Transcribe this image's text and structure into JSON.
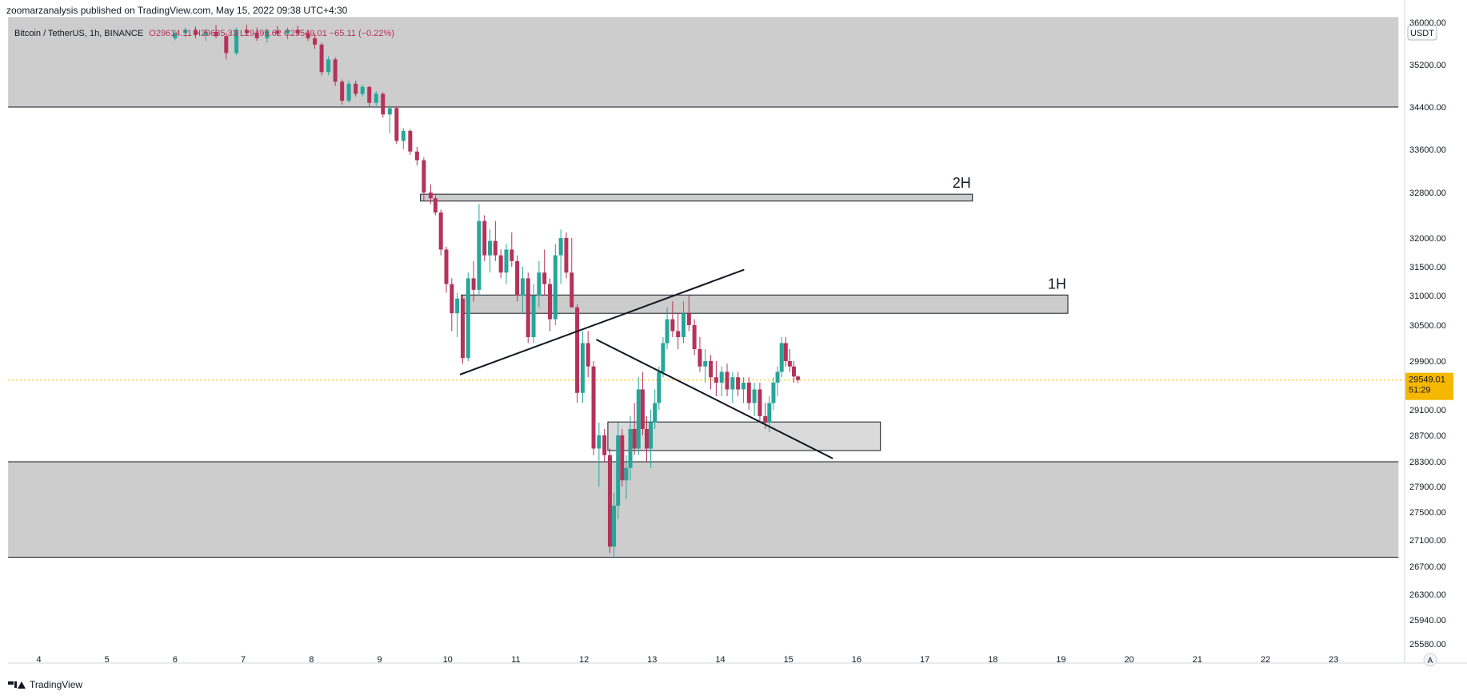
{
  "header": {
    "published": "zoomarzanalysis published on TradingView.com, May 15, 2022 09:38 UTC+4:30"
  },
  "legend": {
    "symbol": "Bitcoin / TetherUS, 1h, BINANCE",
    "ohlc": "O29614.11 H29635.33 L29495.62 C29549.01 −65.11 (−0.22%)"
  },
  "footer": {
    "brand": "TradingView",
    "logo_icon": "tradingview-logo-icon"
  },
  "colors": {
    "up": "#26a69a",
    "down": "#b5325a",
    "zone": "#cdcdcd",
    "zone_small": "#bbbbbb",
    "price_badge": "#f5b700"
  },
  "chart_data": {
    "type": "candlestick",
    "currency_label": "USDT",
    "current_price": {
      "price_text": "29549.01",
      "countdown": "51:29",
      "value": 29549.01
    },
    "x_ticks": [
      "4",
      "5",
      "6",
      "7",
      "8",
      "9",
      "10",
      "11",
      "12",
      "13",
      "14",
      "15",
      "16",
      "17",
      "18",
      "19",
      "20",
      "21",
      "22",
      "23"
    ],
    "y_ticks": [
      "36000.00",
      "35200.00",
      "34400.00",
      "33600.00",
      "32800.00",
      "32000.00",
      "31500.00",
      "31000.00",
      "30500.00",
      "29900.00",
      "29500.00",
      "29100.00",
      "28700.00",
      "28300.00",
      "27900.00",
      "27500.00",
      "27100.00",
      "26700.00",
      "26300.00",
      "25940.00",
      "25580.00"
    ],
    "y_tick_values": [
      36000,
      35200,
      34400,
      33600,
      32800,
      32000,
      31500,
      31000,
      30500,
      29900,
      29500,
      29100,
      28700,
      28300,
      27900,
      27500,
      27100,
      26700,
      26300,
      25940,
      25580
    ],
    "zones": [
      {
        "label": "",
        "x_start": 3.55,
        "x_end": 23.95,
        "y_high": 36100,
        "y_low": 34400
      },
      {
        "label": "",
        "x_start": 3.55,
        "x_end": 23.95,
        "y_high": 28300,
        "y_low": 26840
      },
      {
        "label": "2H",
        "x_start": 9.6,
        "x_end": 17.7,
        "y_high": 32770,
        "y_low": 32650
      },
      {
        "label": "1H",
        "x_start": 10.2,
        "x_end": 19.1,
        "y_high": 31010,
        "y_low": 30700
      },
      {
        "label": "",
        "x_start": 12.35,
        "x_end": 16.35,
        "y_high": 28910,
        "y_low": 28470
      }
    ],
    "trendlines": [
      {
        "x1": 10.18,
        "y1": 29650,
        "x2": 14.35,
        "y2": 31450
      },
      {
        "x1": 12.18,
        "y1": 30260,
        "x2": 15.65,
        "y2": 28350
      }
    ],
    "candles_ohlc": [
      [
        6.0,
        35700,
        35860,
        35660,
        35800
      ],
      [
        6.15,
        35800,
        35900,
        35720,
        35860
      ],
      [
        6.3,
        35860,
        35920,
        35700,
        35760
      ],
      [
        6.45,
        35760,
        35880,
        35650,
        35820
      ],
      [
        6.6,
        35820,
        35950,
        35700,
        35740
      ],
      [
        6.75,
        35740,
        35800,
        35300,
        35420
      ],
      [
        6.9,
        35420,
        35900,
        35380,
        35860
      ],
      [
        7.05,
        35860,
        35960,
        35750,
        35800
      ],
      [
        7.2,
        35800,
        35900,
        35650,
        35700
      ],
      [
        7.35,
        35700,
        35880,
        35620,
        35840
      ],
      [
        7.5,
        35840,
        35930,
        35760,
        35790
      ],
      [
        7.65,
        35790,
        35900,
        35680,
        35860
      ],
      [
        7.8,
        35860,
        35940,
        35760,
        35800
      ],
      [
        7.95,
        35800,
        35860,
        35650,
        35700
      ],
      [
        8.05,
        35700,
        35780,
        35500,
        35580
      ],
      [
        8.15,
        35580,
        35620,
        35000,
        35060
      ],
      [
        8.25,
        35060,
        35360,
        35000,
        35300
      ],
      [
        8.35,
        35300,
        35340,
        34800,
        34880
      ],
      [
        8.45,
        34880,
        34920,
        34450,
        34520
      ],
      [
        8.55,
        34520,
        34900,
        34480,
        34840
      ],
      [
        8.65,
        34840,
        34900,
        34600,
        34650
      ],
      [
        8.75,
        34650,
        34820,
        34600,
        34780
      ],
      [
        8.85,
        34780,
        34800,
        34400,
        34480
      ],
      [
        8.95,
        34480,
        34700,
        34420,
        34650
      ],
      [
        9.05,
        34650,
        34680,
        34200,
        34260
      ],
      [
        9.15,
        34260,
        34420,
        33900,
        34380
      ],
      [
        9.25,
        34380,
        34420,
        33700,
        33760
      ],
      [
        9.35,
        33760,
        34000,
        33600,
        33950
      ],
      [
        9.45,
        33950,
        33980,
        33500,
        33560
      ],
      [
        9.55,
        33560,
        33650,
        33300,
        33400
      ],
      [
        9.65,
        33400,
        33450,
        32650,
        32800
      ],
      [
        9.75,
        32800,
        32950,
        32600,
        32700
      ],
      [
        9.82,
        32700,
        32750,
        32400,
        32450
      ],
      [
        9.9,
        32450,
        32500,
        31700,
        31800
      ],
      [
        9.98,
        31800,
        31850,
        31050,
        31200
      ],
      [
        10.06,
        31200,
        31300,
        30400,
        30700
      ],
      [
        10.14,
        30700,
        31050,
        30300,
        30950
      ],
      [
        10.22,
        30950,
        31000,
        29850,
        29950
      ],
      [
        10.3,
        29950,
        31400,
        29900,
        31300
      ],
      [
        10.38,
        31300,
        31600,
        30900,
        31100
      ],
      [
        10.46,
        31100,
        32600,
        31000,
        32300
      ],
      [
        10.54,
        32300,
        32400,
        31600,
        31700
      ],
      [
        10.62,
        31700,
        32150,
        31400,
        31950
      ],
      [
        10.7,
        31950,
        32300,
        31600,
        31700
      ],
      [
        10.78,
        31700,
        31800,
        31300,
        31400
      ],
      [
        10.86,
        31400,
        31900,
        31200,
        31800
      ],
      [
        10.94,
        31800,
        32100,
        31500,
        31600
      ],
      [
        11.02,
        31600,
        31700,
        30900,
        31000
      ],
      [
        11.1,
        31000,
        31500,
        30700,
        31300
      ],
      [
        11.18,
        31300,
        31400,
        30200,
        30300
      ],
      [
        11.26,
        30300,
        31200,
        30200,
        31000
      ],
      [
        11.34,
        31000,
        31600,
        30800,
        31400
      ],
      [
        11.42,
        31400,
        31800,
        31000,
        31200
      ],
      [
        11.5,
        31200,
        31300,
        30400,
        30600
      ],
      [
        11.58,
        30600,
        31900,
        30500,
        31700
      ],
      [
        11.66,
        31700,
        32150,
        31200,
        32000
      ],
      [
        11.74,
        32000,
        32100,
        31300,
        31400
      ],
      [
        11.82,
        31400,
        32000,
        30900,
        30800
      ],
      [
        11.9,
        30800,
        30850,
        29200,
        29350
      ],
      [
        11.98,
        29350,
        30400,
        29200,
        30200
      ],
      [
        12.06,
        30200,
        30400,
        29600,
        29800
      ],
      [
        12.14,
        29800,
        29900,
        28400,
        28500
      ],
      [
        12.22,
        28500,
        28900,
        27900,
        28700
      ],
      [
        12.3,
        28700,
        28800,
        28300,
        28400
      ],
      [
        12.38,
        28400,
        28500,
        26900,
        27000
      ],
      [
        12.44,
        27000,
        27800,
        26850,
        27600
      ],
      [
        12.5,
        27600,
        28900,
        27400,
        28700
      ],
      [
        12.56,
        28700,
        28800,
        27900,
        28000
      ],
      [
        12.62,
        28000,
        28400,
        27700,
        28200
      ],
      [
        12.68,
        28200,
        29000,
        28000,
        28800
      ],
      [
        12.74,
        28800,
        29200,
        28400,
        28500
      ],
      [
        12.8,
        28500,
        29600,
        28400,
        29400
      ],
      [
        12.86,
        29400,
        29700,
        28700,
        28800
      ],
      [
        12.92,
        28800,
        29000,
        28300,
        28500
      ],
      [
        12.98,
        28500,
        29100,
        28200,
        28900
      ],
      [
        13.04,
        28900,
        29400,
        28800,
        29200
      ],
      [
        13.1,
        29200,
        29800,
        29100,
        29700
      ],
      [
        13.16,
        29700,
        30300,
        29600,
        30200
      ],
      [
        13.22,
        30200,
        30800,
        30100,
        30600
      ],
      [
        13.3,
        30600,
        30900,
        30300,
        30400
      ],
      [
        13.38,
        30400,
        30700,
        30100,
        30300
      ],
      [
        13.46,
        30300,
        30900,
        30200,
        30700
      ],
      [
        13.54,
        30700,
        31000,
        30400,
        30500
      ],
      [
        13.62,
        30500,
        30600,
        30000,
        30100
      ],
      [
        13.7,
        30100,
        30300,
        29700,
        29800
      ],
      [
        13.78,
        29800,
        30100,
        29500,
        29900
      ],
      [
        13.86,
        29900,
        30000,
        29400,
        29600
      ],
      [
        13.94,
        29600,
        29900,
        29300,
        29500
      ],
      [
        14.02,
        29500,
        29800,
        29300,
        29700
      ],
      [
        14.1,
        29700,
        29850,
        29300,
        29400
      ],
      [
        14.18,
        29400,
        29700,
        29200,
        29600
      ],
      [
        14.26,
        29600,
        29700,
        29300,
        29400
      ],
      [
        14.34,
        29400,
        29600,
        29200,
        29500
      ],
      [
        14.42,
        29500,
        29600,
        29100,
        29200
      ],
      [
        14.5,
        29200,
        29500,
        29000,
        29400
      ],
      [
        14.58,
        29400,
        29500,
        28900,
        29000
      ],
      [
        14.66,
        29000,
        29200,
        28800,
        28900
      ],
      [
        14.72,
        28900,
        29300,
        28750,
        29200
      ],
      [
        14.78,
        29200,
        29600,
        29100,
        29500
      ],
      [
        14.84,
        29500,
        29800,
        29300,
        29700
      ],
      [
        14.9,
        29700,
        30300,
        29600,
        30200
      ],
      [
        14.96,
        30200,
        30300,
        29800,
        29900
      ],
      [
        15.02,
        29900,
        30100,
        29700,
        29800
      ],
      [
        15.08,
        29800,
        29900,
        29500,
        29614
      ],
      [
        15.14,
        29614.11,
        29635.33,
        29495.62,
        29549.01
      ]
    ]
  }
}
